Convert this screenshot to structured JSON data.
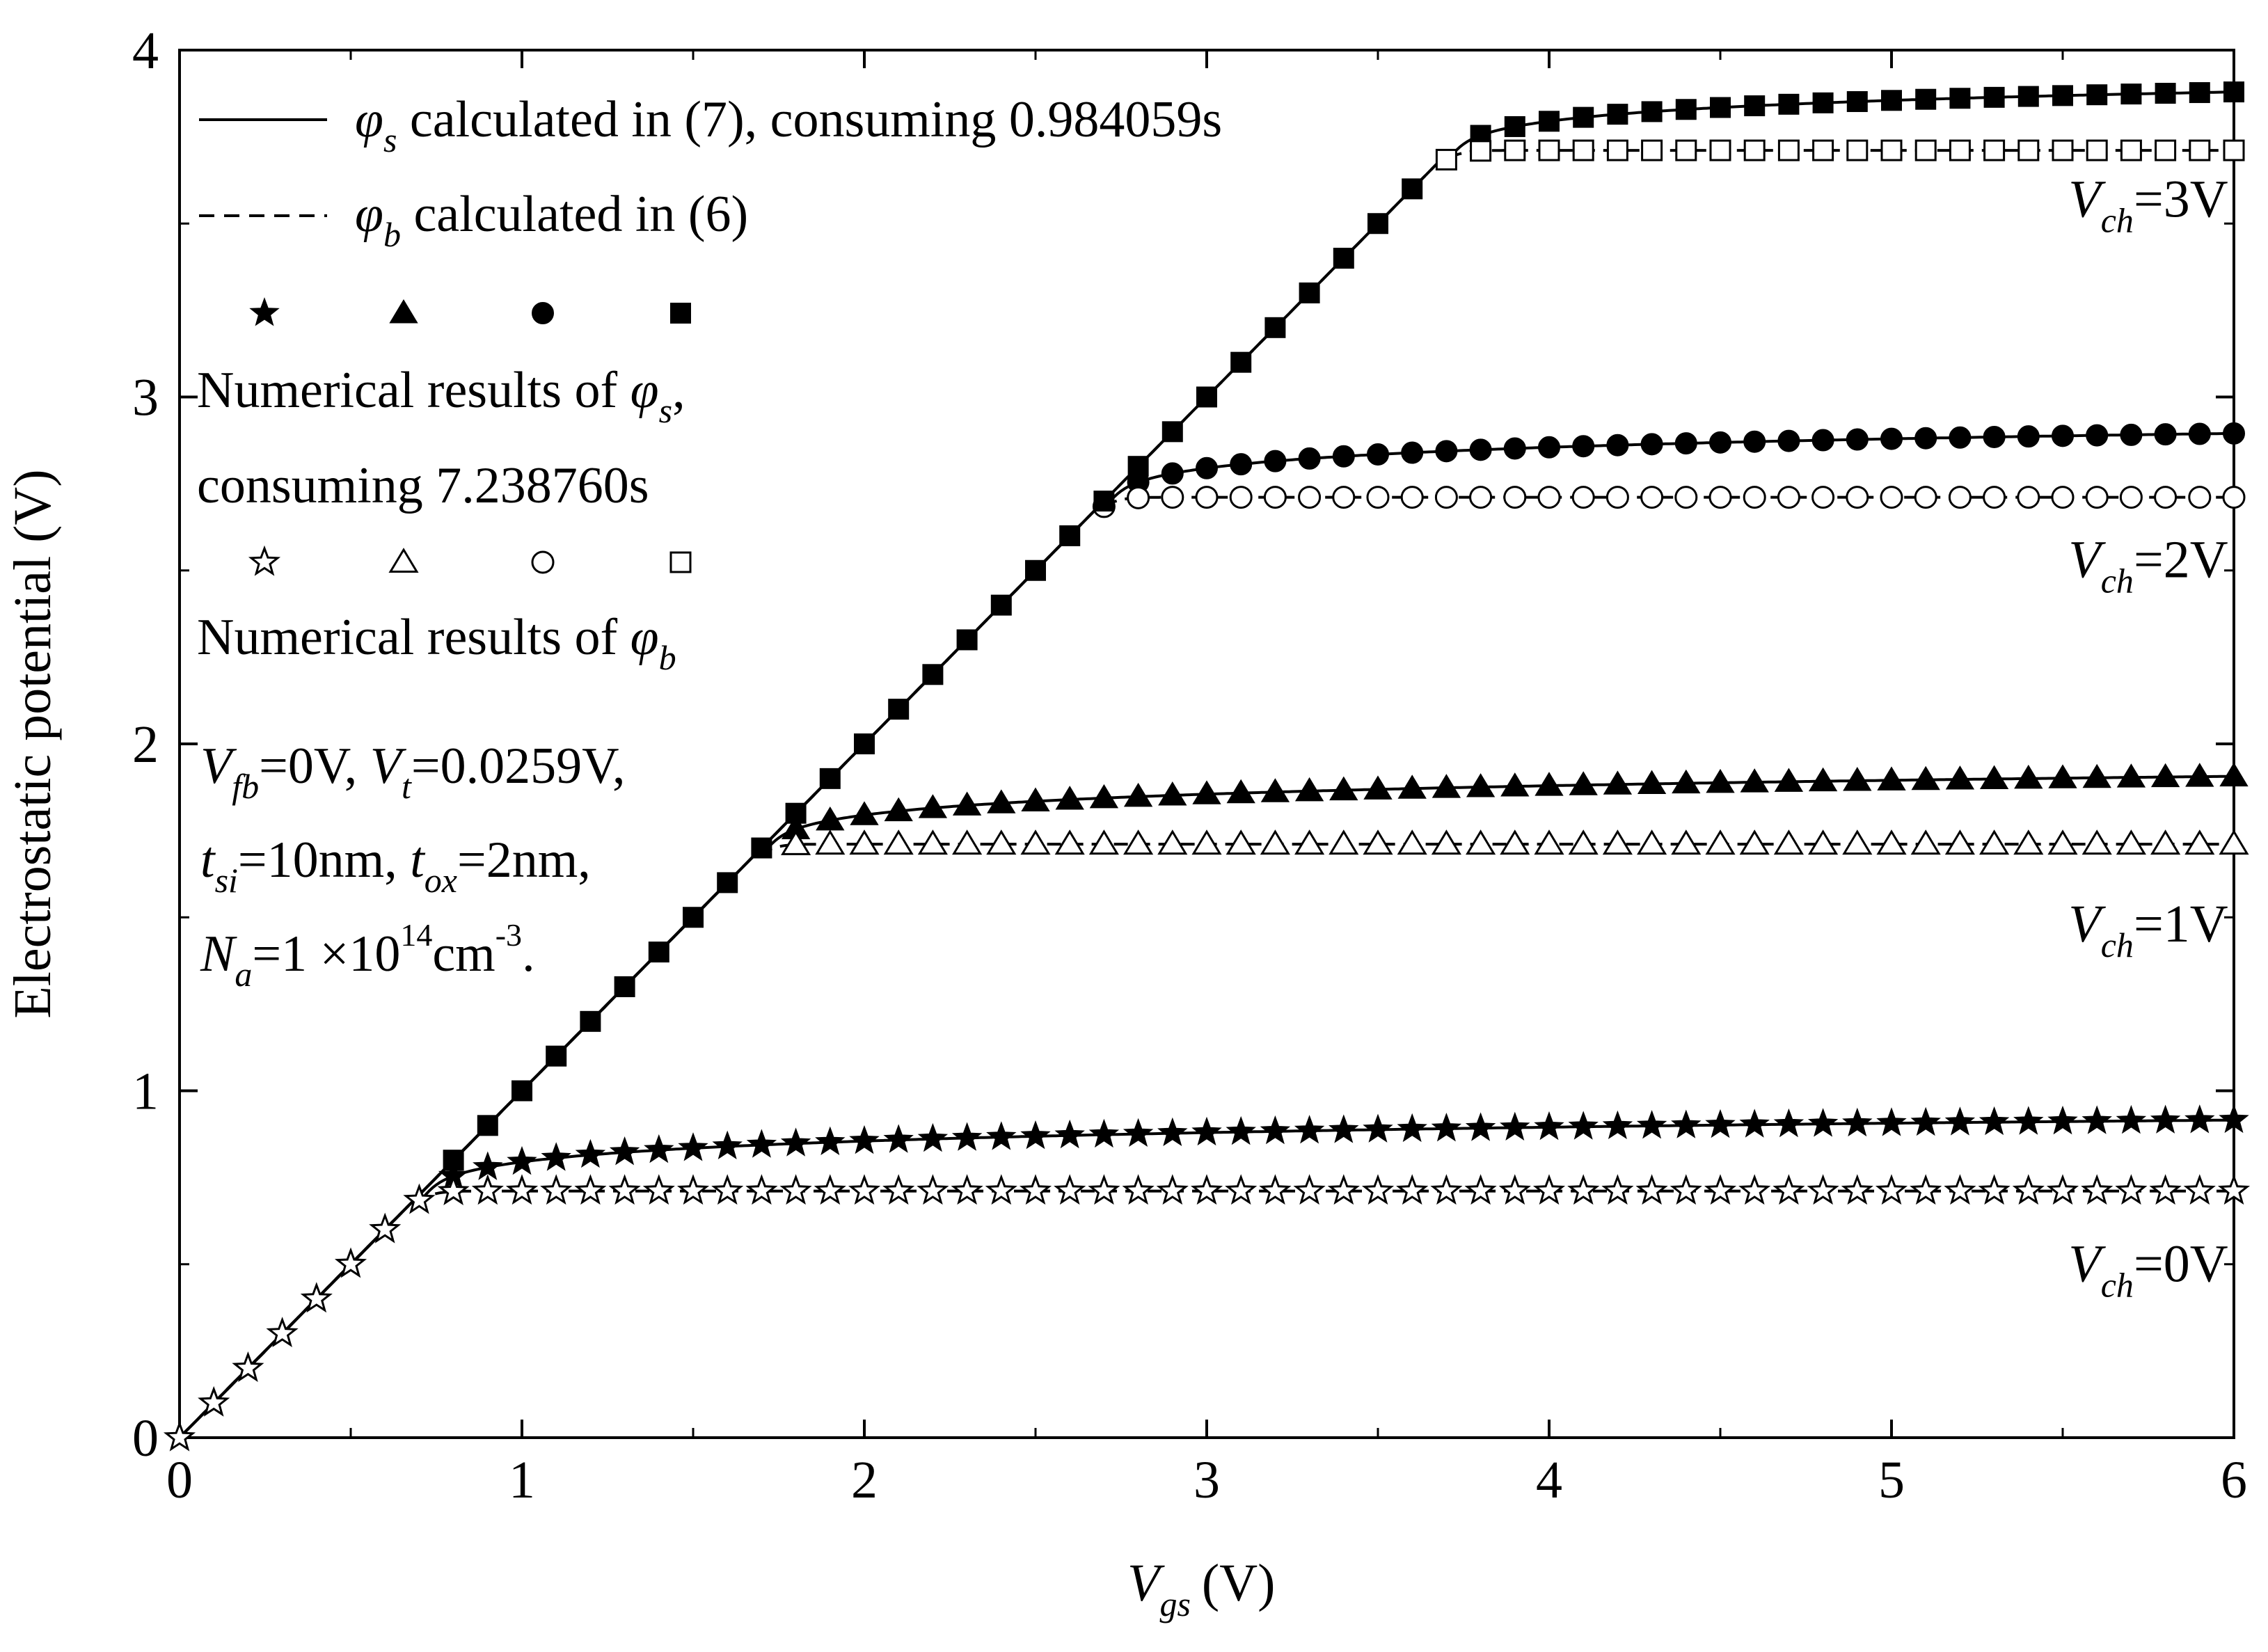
{
  "chart_data": {
    "type": "line",
    "xlabel": "(V)",
    "xlabel_var": "V",
    "xlabel_sub": "gs",
    "ylabel": "Electrostatic potential (V)",
    "xlim": [
      0,
      6
    ],
    "ylim": [
      0,
      4
    ],
    "xticks": [
      "0",
      "1",
      "2",
      "3",
      "4",
      "5",
      "6"
    ],
    "yticks": [
      "0",
      "1",
      "2",
      "3",
      "4"
    ],
    "x_step": 0.1,
    "series": [
      {
        "name": "phi_s, Vch=0V",
        "kind": "surface",
        "vch": 0,
        "marker": "star-filled",
        "offset": 0.711,
        "k": 0.06,
        "x_start": 0
      },
      {
        "name": "phi_b, Vch=0V",
        "kind": "center",
        "vch": 0,
        "marker": "star-open",
        "offset": 0.711,
        "x_start": 0
      },
      {
        "name": "phi_s, Vch=1V",
        "kind": "surface",
        "vch": 1,
        "marker": "triangle-filled",
        "offset": 1.711,
        "k": 0.06,
        "x_start": 1.8
      },
      {
        "name": "phi_b, Vch=1V",
        "kind": "center",
        "vch": 1,
        "marker": "triangle-open",
        "offset": 1.711,
        "x_start": 1.8
      },
      {
        "name": "phi_s, Vch=2V",
        "kind": "surface",
        "vch": 2,
        "marker": "circle-filled",
        "offset": 2.711,
        "k": 0.06,
        "x_start": 2.7
      },
      {
        "name": "phi_b, Vch=2V",
        "kind": "center",
        "vch": 2,
        "marker": "circle-open",
        "offset": 2.711,
        "x_start": 2.7
      },
      {
        "name": "phi_s, Vch=3V",
        "kind": "surface",
        "vch": 3,
        "marker": "square-filled",
        "offset": 3.711,
        "k": 0.06,
        "x_start": 0.8
      },
      {
        "name": "phi_b, Vch=3V",
        "kind": "center",
        "vch": 3,
        "marker": "square-open",
        "offset": 3.711,
        "x_start": 3.7
      }
    ],
    "curve_labels": [
      {
        "var": "V",
        "sub": "ch",
        "text": "=3V",
        "x": 5.75,
        "y": 3.52
      },
      {
        "var": "V",
        "sub": "ch",
        "text": "=2V",
        "x": 5.75,
        "y": 2.48
      },
      {
        "var": "V",
        "sub": "ch",
        "text": "=1V",
        "x": 5.75,
        "y": 1.43
      },
      {
        "var": "V",
        "sub": "ch",
        "text": "=0V",
        "x": 5.75,
        "y": 0.45
      }
    ]
  },
  "legend": {
    "line1": {
      "symbol": "φ",
      "sub": "s",
      "text": " calculated in (7), consuming 0.984059s"
    },
    "line2": {
      "symbol": "φ",
      "sub": "b",
      "text": " calculated in (6)"
    },
    "numerical_s": {
      "text": "Numerical results of ",
      "symbol": "φ",
      "sub": "s",
      "after": ","
    },
    "consuming": "consuming 7.238760s",
    "numerical_b": {
      "text": "Numerical results of ",
      "symbol": "φ",
      "sub": "b"
    }
  },
  "params": {
    "vfb_var": "V",
    "vfb_sub": "fb",
    "vfb_text": "=0V, ",
    "vt_var": "V",
    "vt_sub": "t",
    "vt_text": "=0.0259V,",
    "tsi_var": "t",
    "tsi_sub": "si",
    "tsi_text": "=10nm, ",
    "tox_var": "t",
    "tox_sub": "ox",
    "tox_text": "=2nm,",
    "na_var": "N",
    "na_sub": "a",
    "na_text": "=1 ×10",
    "na_exp": "14",
    "na_unit": "cm",
    "na_unit_exp": "-3",
    "na_end": "."
  }
}
